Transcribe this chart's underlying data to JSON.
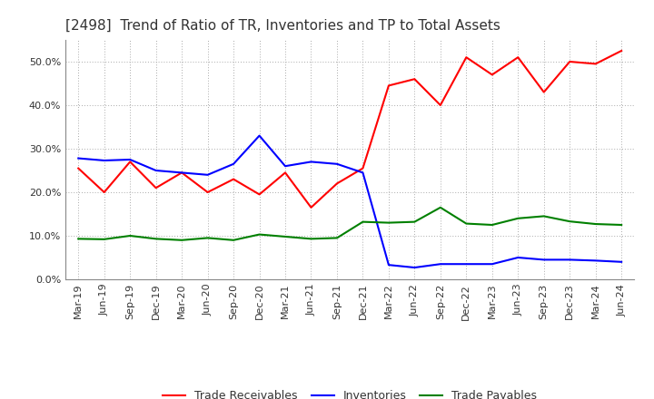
{
  "title": "[2498]  Trend of Ratio of TR, Inventories and TP to Total Assets",
  "x_labels": [
    "Mar-19",
    "Jun-19",
    "Sep-19",
    "Dec-19",
    "Mar-20",
    "Jun-20",
    "Sep-20",
    "Dec-20",
    "Mar-21",
    "Jun-21",
    "Sep-21",
    "Dec-21",
    "Mar-22",
    "Jun-22",
    "Sep-22",
    "Dec-22",
    "Mar-23",
    "Jun-23",
    "Sep-23",
    "Dec-23",
    "Mar-24",
    "Jun-24"
  ],
  "trade_receivables": [
    0.255,
    0.2,
    0.27,
    0.21,
    0.245,
    0.2,
    0.23,
    0.195,
    0.245,
    0.165,
    0.22,
    0.255,
    0.445,
    0.46,
    0.4,
    0.51,
    0.47,
    0.51,
    0.43,
    0.5,
    0.495,
    0.525
  ],
  "inventories": [
    0.278,
    0.273,
    0.275,
    0.25,
    0.245,
    0.24,
    0.265,
    0.33,
    0.26,
    0.27,
    0.265,
    0.245,
    0.033,
    0.027,
    0.035,
    0.035,
    0.035,
    0.05,
    0.045,
    0.045,
    0.043,
    0.04
  ],
  "trade_payables": [
    0.093,
    0.092,
    0.1,
    0.093,
    0.09,
    0.095,
    0.09,
    0.103,
    0.098,
    0.093,
    0.095,
    0.132,
    0.13,
    0.132,
    0.165,
    0.128,
    0.125,
    0.14,
    0.145,
    0.133,
    0.127,
    0.125
  ],
  "tr_color": "#FF0000",
  "inv_color": "#0000FF",
  "tp_color": "#008000",
  "background_color": "#FFFFFF",
  "grid_color": "#AAAAAA",
  "ylim": [
    0.0,
    0.55
  ],
  "yticks": [
    0.0,
    0.1,
    0.2,
    0.3,
    0.4,
    0.5
  ],
  "legend_labels": [
    "Trade Receivables",
    "Inventories",
    "Trade Payables"
  ],
  "title_fontsize": 11,
  "axis_fontsize": 8,
  "legend_fontsize": 9
}
